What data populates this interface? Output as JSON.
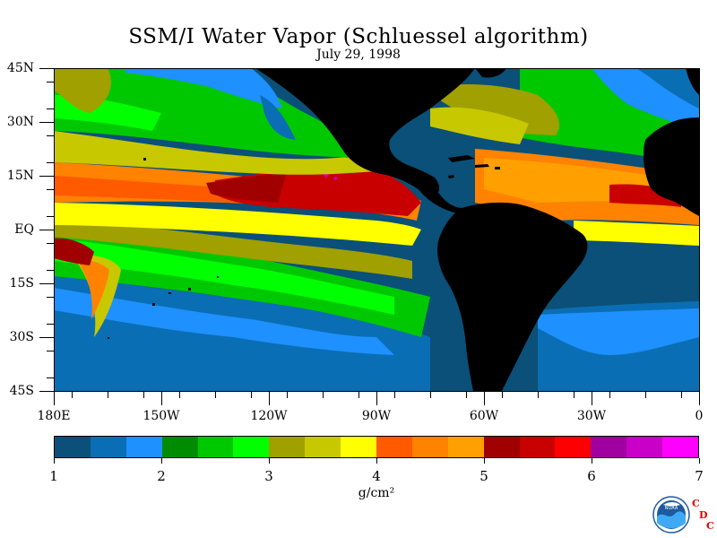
{
  "title": "SSM/I Water Vapor (Schluessel algorithm)",
  "subtitle": "July 29, 1998",
  "lat_labels": [
    "45N",
    "30N",
    "15N",
    "EQ",
    "15S",
    "30S",
    "45S"
  ],
  "lon_labels": [
    "180E",
    "150W",
    "120W",
    "90W",
    "60W",
    "30W",
    "0"
  ],
  "colorbar": {
    "labels": [
      "1",
      "2",
      "3",
      "4",
      "5",
      "6",
      "7"
    ],
    "colors": [
      "#0a5078",
      "#0a6eb4",
      "#1e90ff",
      "#008c00",
      "#00c800",
      "#00ff00",
      "#a0a000",
      "#c8c800",
      "#ffff00",
      "#ff5a00",
      "#ff8200",
      "#ffa000",
      "#a00000",
      "#c80000",
      "#ff0000",
      "#a000a0",
      "#c800c8",
      "#ff00ff"
    ],
    "units": "g/cm²"
  },
  "logo": {
    "text": "NOAA",
    "letters": [
      "C",
      "D",
      "C"
    ]
  },
  "map_colors": {
    "land": "#000000"
  }
}
